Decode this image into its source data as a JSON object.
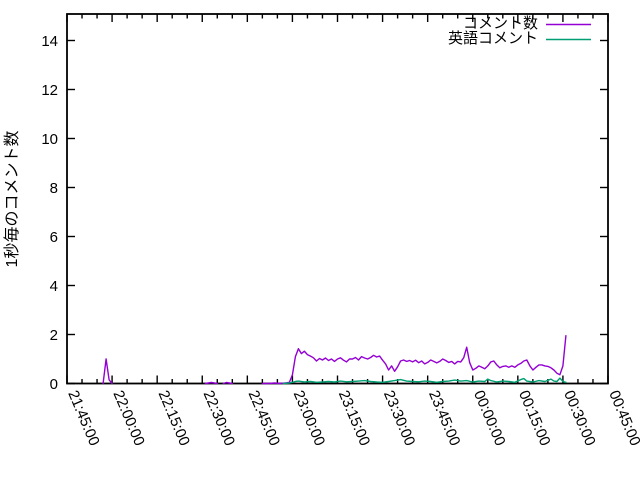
{
  "chart_data": {
    "type": "line",
    "title": "",
    "xlabel": "",
    "ylabel": "1秒毎のコメント数",
    "ylim": [
      0,
      15
    ],
    "yticks": [
      0,
      2,
      4,
      6,
      8,
      10,
      12,
      14
    ],
    "x_tick_labels": [
      "21:45:00",
      "22:00:00",
      "22:15:00",
      "22:30:00",
      "22:45:00",
      "23:00:00",
      "23:15:00",
      "23:30:00",
      "23:45:00",
      "00:00:00",
      "00:15:00",
      "00:30:00",
      "00:45:00"
    ],
    "x_minor_tick_minutes": 5,
    "x_major_tick_minutes": 15,
    "grid": false,
    "legend_position": "top-right-inside",
    "axis_color": "#000000",
    "background_color": "#ffffff",
    "series": [
      {
        "name": "コメント数",
        "color": "#9400d3",
        "segments": [
          [
            [
              "21:57",
              0
            ],
            [
              "21:58",
              1.0
            ],
            [
              "21:59",
              0.15
            ],
            [
              "22:00",
              0
            ]
          ],
          [
            [
              "22:31",
              0
            ],
            [
              "22:33",
              0.04
            ],
            [
              "22:35",
              0
            ]
          ],
          [
            [
              "22:37",
              0
            ],
            [
              "22:38",
              0.04
            ],
            [
              "22:40",
              0
            ]
          ],
          [
            [
              "22:50",
              0
            ],
            [
              "22:52",
              0
            ],
            [
              "22:54",
              0.02
            ],
            [
              "22:56",
              0
            ],
            [
              "22:58",
              0.03
            ],
            [
              "22:59",
              0.05
            ],
            [
              "23:00",
              0.35
            ],
            [
              "23:01",
              1.1
            ],
            [
              "23:02",
              1.42
            ],
            [
              "23:03",
              1.22
            ],
            [
              "23:04",
              1.32
            ],
            [
              "23:05",
              1.18
            ],
            [
              "23:06",
              1.12
            ],
            [
              "23:07",
              1.05
            ],
            [
              "23:08",
              0.92
            ],
            [
              "23:09",
              1.02
            ],
            [
              "23:10",
              0.96
            ],
            [
              "23:11",
              1.04
            ],
            [
              "23:12",
              0.94
            ],
            [
              "23:13",
              1.0
            ],
            [
              "23:14",
              0.9
            ],
            [
              "23:15",
              1.0
            ],
            [
              "23:16",
              1.05
            ],
            [
              "23:17",
              0.95
            ],
            [
              "23:18",
              0.88
            ],
            [
              "23:19",
              1.0
            ],
            [
              "23:20",
              1.0
            ],
            [
              "23:21",
              1.06
            ],
            [
              "23:22",
              0.96
            ],
            [
              "23:23",
              1.1
            ],
            [
              "23:24",
              1.04
            ],
            [
              "23:25",
              1.0
            ],
            [
              "23:26",
              1.06
            ],
            [
              "23:27",
              1.15
            ],
            [
              "23:28",
              1.08
            ],
            [
              "23:29",
              1.12
            ],
            [
              "23:30",
              0.95
            ],
            [
              "23:31",
              0.8
            ],
            [
              "23:32",
              0.55
            ],
            [
              "23:33",
              0.72
            ],
            [
              "23:34",
              0.5
            ],
            [
              "23:35",
              0.68
            ],
            [
              "23:36",
              0.92
            ],
            [
              "23:37",
              0.96
            ],
            [
              "23:38",
              0.9
            ],
            [
              "23:39",
              0.94
            ],
            [
              "23:40",
              0.88
            ],
            [
              "23:41",
              0.95
            ],
            [
              "23:42",
              0.85
            ],
            [
              "23:43",
              0.92
            ],
            [
              "23:44",
              0.8
            ],
            [
              "23:45",
              0.86
            ],
            [
              "23:46",
              0.96
            ],
            [
              "23:47",
              0.9
            ],
            [
              "23:48",
              0.84
            ],
            [
              "23:49",
              0.9
            ],
            [
              "23:50",
              1.0
            ],
            [
              "23:51",
              0.94
            ],
            [
              "23:52",
              0.86
            ],
            [
              "23:53",
              0.9
            ],
            [
              "23:54",
              0.8
            ],
            [
              "23:55",
              0.9
            ],
            [
              "23:56",
              0.88
            ],
            [
              "23:57",
              1.05
            ],
            [
              "23:58",
              1.48
            ],
            [
              "23:59",
              0.85
            ],
            [
              "00:00",
              0.55
            ],
            [
              "00:01",
              0.62
            ],
            [
              "00:02",
              0.72
            ],
            [
              "00:03",
              0.66
            ],
            [
              "00:04",
              0.6
            ],
            [
              "00:05",
              0.72
            ],
            [
              "00:06",
              0.88
            ],
            [
              "00:07",
              0.92
            ],
            [
              "00:08",
              0.76
            ],
            [
              "00:09",
              0.64
            ],
            [
              "00:10",
              0.7
            ],
            [
              "00:11",
              0.72
            ],
            [
              "00:12",
              0.66
            ],
            [
              "00:13",
              0.72
            ],
            [
              "00:14",
              0.66
            ],
            [
              "00:15",
              0.76
            ],
            [
              "00:16",
              0.82
            ],
            [
              "00:17",
              0.92
            ],
            [
              "00:18",
              0.96
            ],
            [
              "00:19",
              0.72
            ],
            [
              "00:20",
              0.55
            ],
            [
              "00:21",
              0.66
            ],
            [
              "00:22",
              0.76
            ],
            [
              "00:23",
              0.76
            ],
            [
              "00:24",
              0.72
            ],
            [
              "00:25",
              0.7
            ],
            [
              "00:26",
              0.64
            ],
            [
              "00:27",
              0.55
            ],
            [
              "00:28",
              0.42
            ],
            [
              "00:29",
              0.36
            ],
            [
              "00:30",
              0.72
            ],
            [
              "00:31",
              1.95
            ]
          ]
        ]
      },
      {
        "name": "英語コメント",
        "color": "#009e73",
        "segments": [
          [
            [
              "22:57",
              0
            ],
            [
              "22:59",
              0.02
            ],
            [
              "23:00",
              0.05
            ],
            [
              "23:01",
              0.08
            ],
            [
              "23:02",
              0.1
            ],
            [
              "23:04",
              0.06
            ],
            [
              "23:06",
              0.08
            ],
            [
              "23:08",
              0.05
            ],
            [
              "23:10",
              0.06
            ],
            [
              "23:12",
              0.08
            ],
            [
              "23:14",
              0.06
            ],
            [
              "23:16",
              0.1
            ],
            [
              "23:18",
              0.07
            ],
            [
              "23:20",
              0.08
            ],
            [
              "23:22",
              0.1
            ],
            [
              "23:24",
              0.12
            ],
            [
              "23:26",
              0.08
            ],
            [
              "23:28",
              0.06
            ],
            [
              "23:30",
              0.05
            ],
            [
              "23:32",
              0.08
            ],
            [
              "23:34",
              0.12
            ],
            [
              "23:36",
              0.16
            ],
            [
              "23:38",
              0.1
            ],
            [
              "23:40",
              0.08
            ],
            [
              "23:42",
              0.07
            ],
            [
              "23:44",
              0.1
            ],
            [
              "23:46",
              0.08
            ],
            [
              "23:48",
              0.05
            ],
            [
              "23:50",
              0.08
            ],
            [
              "23:52",
              0.1
            ],
            [
              "23:54",
              0.14
            ],
            [
              "23:56",
              0.1
            ],
            [
              "23:58",
              0.12
            ],
            [
              "00:00",
              0.06
            ],
            [
              "00:02",
              0.1
            ],
            [
              "00:04",
              0.08
            ],
            [
              "00:05",
              0.18
            ],
            [
              "00:06",
              0.12
            ],
            [
              "00:08",
              0.06
            ],
            [
              "00:10",
              0.1
            ],
            [
              "00:12",
              0.08
            ],
            [
              "00:14",
              0.05
            ],
            [
              "00:16",
              0.16
            ],
            [
              "00:17",
              0.2
            ],
            [
              "00:18",
              0.1
            ],
            [
              "00:20",
              0.06
            ],
            [
              "00:22",
              0.12
            ],
            [
              "00:24",
              0.08
            ],
            [
              "00:26",
              0.18
            ],
            [
              "00:27",
              0.1
            ],
            [
              "00:28",
              0.08
            ],
            [
              "00:29",
              0.22
            ],
            [
              "00:30",
              0.08
            ],
            [
              "00:31",
              0.05
            ]
          ]
        ]
      }
    ]
  }
}
